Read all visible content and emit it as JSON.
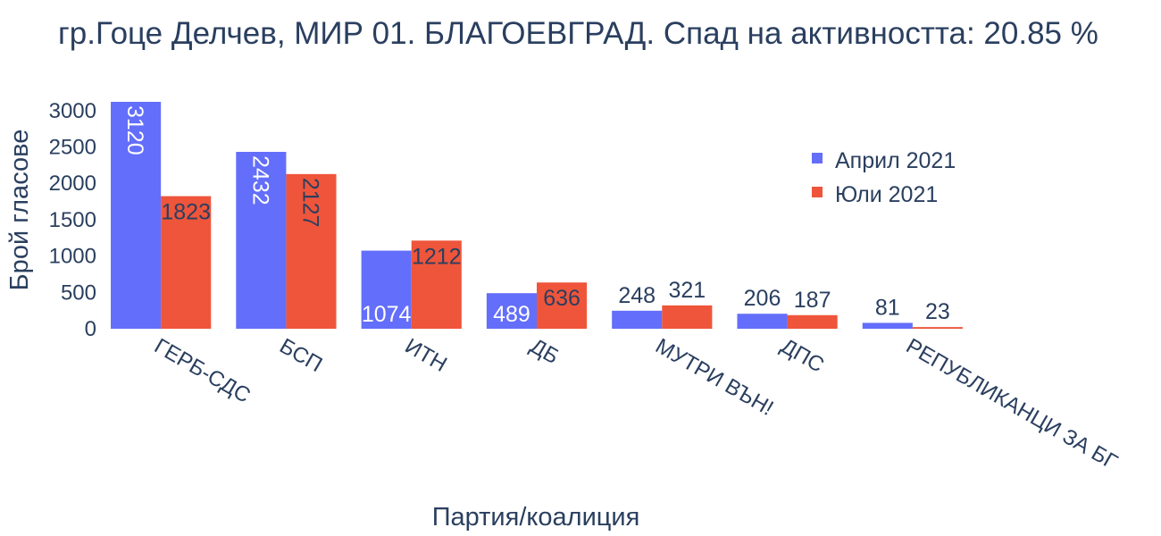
{
  "chart_data": {
    "type": "bar",
    "title": "гр.Гоце Делчев, МИР 01. БЛАГОЕВГРАД. Спад на активността: 20.85 %",
    "xlabel": "Партия/коалиция",
    "ylabel": "Брой гласове",
    "categories": [
      "ГЕРБ-СДС",
      "БСП",
      "ИТН",
      "ДБ",
      "МУТРИ ВЪН!",
      "ДПС",
      "РЕПУБЛИКАНЦИ ЗА БГ"
    ],
    "series": [
      {
        "name": "Април 2021",
        "color": "#636efa",
        "values": [
          3120,
          2432,
          1074,
          489,
          248,
          206,
          81
        ]
      },
      {
        "name": "Юли 2021",
        "color": "#ef553b",
        "values": [
          1823,
          2127,
          1212,
          636,
          321,
          187,
          23
        ]
      }
    ],
    "yticks": [
      0,
      500,
      1000,
      1500,
      2000,
      2500,
      3000
    ],
    "ylim": [
      0,
      3120
    ],
    "legend_position": "top-right",
    "grid": false
  }
}
